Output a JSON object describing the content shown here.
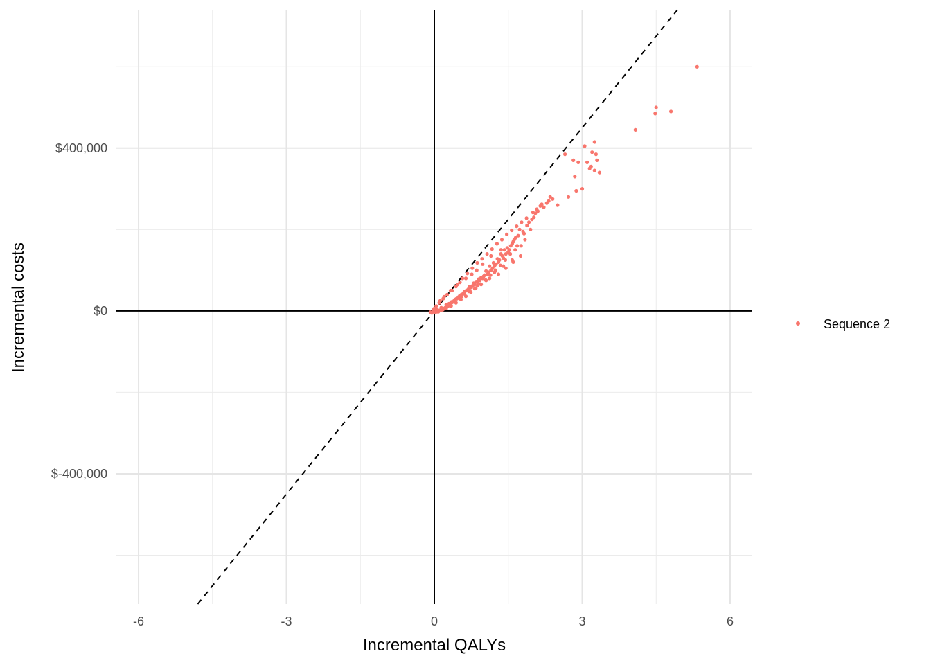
{
  "chart_data": {
    "type": "scatter",
    "xlabel": "Incremental QALYs",
    "ylabel": "Incremental costs",
    "xlim": [
      -6.45,
      6.45
    ],
    "ylim": [
      -720000,
      740000
    ],
    "x_ticks": [
      -6,
      -3,
      0,
      3,
      6
    ],
    "x_tick_labels": [
      "-6",
      "-3",
      "0",
      "3",
      "6"
    ],
    "x_minor_ticks": [
      -4.5,
      -1.5,
      1.5,
      4.5
    ],
    "y_ticks": [
      -400000,
      0,
      400000
    ],
    "y_tick_labels": [
      "$-400,000",
      "$0",
      "$400,000"
    ],
    "y_minor_ticks": [
      -600000,
      -200000,
      200000,
      600000
    ],
    "grid": true,
    "reference_lines": {
      "x_zero": true,
      "y_zero": true,
      "wtp_slope_per_qaly": 150000,
      "wtp_line_style": "dashed"
    },
    "legend": {
      "position": "right",
      "entries": [
        "Sequence 2"
      ]
    },
    "series": [
      {
        "name": "Sequence 2",
        "color": "#f8766d",
        "x": [
          5.33,
          4.5,
          4.48,
          4.8,
          4.08,
          3.25,
          3.05,
          3.2,
          3.28,
          3.3,
          3.1,
          3.18,
          3.35,
          3.25,
          3.15,
          2.65,
          2.82,
          2.92,
          2.88,
          3.0,
          2.85,
          2.72,
          2.5,
          2.4,
          2.28,
          2.32,
          2.22,
          2.15,
          2.1,
          2.05,
          2.02,
          2.08,
          1.98,
          1.92,
          1.88,
          1.95,
          1.8,
          1.82,
          1.73,
          1.7,
          1.65,
          1.6,
          1.62,
          1.55,
          1.58,
          1.52,
          1.48,
          1.5,
          1.45,
          1.42,
          1.4,
          1.38,
          1.35,
          1.32,
          1.3,
          1.28,
          1.25,
          1.22,
          1.2,
          1.18,
          1.15,
          1.12,
          1.1,
          1.08,
          1.05,
          1.02,
          1.0,
          0.98,
          0.95,
          0.92,
          0.9,
          0.88,
          0.85,
          0.82,
          0.8,
          0.78,
          0.75,
          0.72,
          0.7,
          0.68,
          0.65,
          0.62,
          0.6,
          0.58,
          0.55,
          0.52,
          0.5,
          0.48,
          0.45,
          0.42,
          0.4,
          0.38,
          0.35,
          0.32,
          0.3,
          0.28,
          0.25,
          0.22,
          0.2,
          0.18,
          0.15,
          0.12,
          0.1,
          0.08,
          0.05,
          0.03,
          0.02,
          -0.02,
          -0.05,
          -0.08,
          1.6,
          1.45,
          1.3,
          1.12,
          0.95,
          0.82,
          0.7,
          0.55,
          0.42,
          0.3,
          1.75,
          1.58,
          1.4,
          1.22,
          1.05,
          0.88,
          0.72,
          0.6,
          0.46,
          0.35,
          0.24,
          0.14,
          0.06,
          1.68,
          1.35,
          1.15,
          0.98,
          0.86,
          0.76,
          0.64,
          0.52,
          0.44,
          0.36,
          0.26,
          0.18,
          0.1,
          0.04,
          -0.01,
          0.12,
          0.2,
          0.33,
          0.47,
          0.57,
          0.67,
          0.77,
          0.87,
          0.97,
          1.07,
          1.17,
          1.27,
          1.37,
          1.47,
          1.57,
          1.67,
          1.77,
          1.87,
          2.0,
          2.18,
          2.35,
          1.84,
          1.76,
          1.64,
          1.54,
          1.44,
          1.34,
          1.24,
          1.14,
          1.04,
          0.94,
          0.84,
          0.74,
          0.64,
          0.54,
          0.44,
          0.34,
          0.24,
          0.16,
          0.08,
          0.01
        ],
        "y": [
          600000,
          500000,
          485000,
          490000,
          445000,
          415000,
          405000,
          390000,
          385000,
          370000,
          365000,
          355000,
          340000,
          345000,
          350000,
          385000,
          370000,
          365000,
          295000,
          300000,
          330000,
          280000,
          260000,
          275000,
          265000,
          270000,
          255000,
          258000,
          245000,
          240000,
          230000,
          250000,
          225000,
          218000,
          210000,
          200000,
          195000,
          190000,
          200000,
          185000,
          180000,
          170000,
          175000,
          160000,
          165000,
          150000,
          155000,
          145000,
          140000,
          150000,
          130000,
          135000,
          140000,
          125000,
          120000,
          128000,
          115000,
          110000,
          118000,
          105000,
          100000,
          110000,
          95000,
          90000,
          98000,
          88000,
          85000,
          80000,
          82000,
          75000,
          78000,
          70000,
          72000,
          65000,
          68000,
          62000,
          58000,
          60000,
          55000,
          52000,
          50000,
          48000,
          45000,
          42000,
          40000,
          38000,
          35000,
          32000,
          30000,
          28000,
          25000,
          22000,
          20000,
          18000,
          15000,
          12000,
          10000,
          8000,
          6000,
          4000,
          3000,
          2000,
          1000,
          -1000,
          -2000,
          2000,
          -3000,
          0,
          -5000,
          -3000,
          120000,
          105000,
          90000,
          80000,
          65000,
          55000,
          48000,
          35000,
          25000,
          18000,
          135000,
          125000,
          110000,
          95000,
          75000,
          62000,
          50000,
          42000,
          30000,
          22000,
          15000,
          8000,
          3000,
          160000,
          150000,
          135000,
          115000,
          100000,
          90000,
          80000,
          70000,
          60000,
          50000,
          40000,
          30000,
          20000,
          12000,
          5000,
          25000,
          35000,
          50000,
          65000,
          80000,
          92000,
          105000,
          118000,
          128000,
          140000,
          152000,
          165000,
          175000,
          188000,
          198000,
          208000,
          218000,
          228000,
          242000,
          262000,
          280000,
          175000,
          160000,
          150000,
          140000,
          125000,
          112000,
          100000,
          88000,
          76000,
          66000,
          56000,
          46000,
          36000,
          28000,
          20000,
          12000,
          6000,
          2000,
          -2000,
          6000
        ]
      }
    ]
  }
}
